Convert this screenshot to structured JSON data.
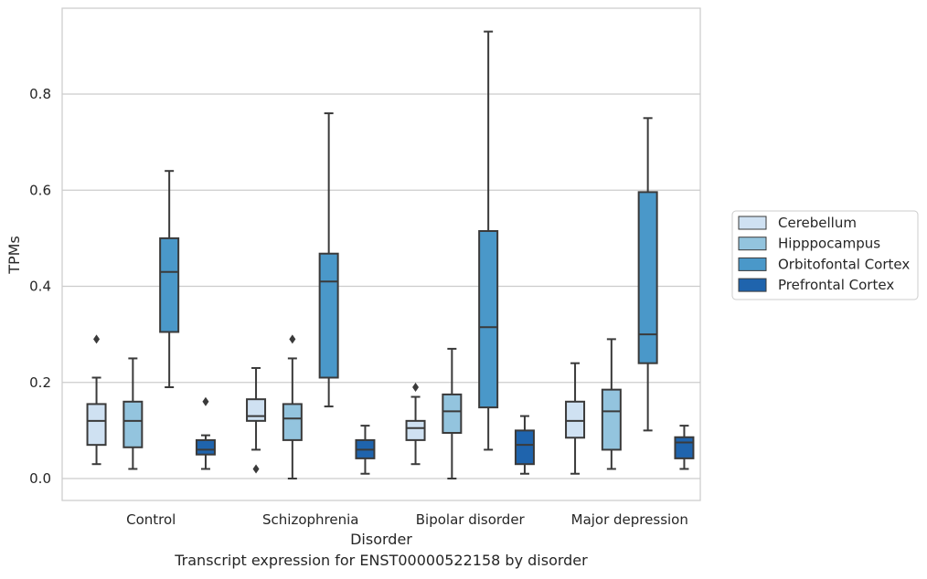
{
  "caption": "Transcript expression for ENST00000522158 by disorder",
  "chart_data": {
    "type": "box",
    "xlabel": "Disorder",
    "ylabel": "TPMs",
    "ylim": [
      -0.045,
      0.98
    ],
    "yticks": [
      "0.0",
      "0.2",
      "0.4",
      "0.6",
      "0.8"
    ],
    "grid": true,
    "legend_position": "right",
    "categories": [
      "Control",
      "Schizophrenia",
      "Bipolar disorder",
      "Major depression"
    ],
    "series": [
      {
        "name": "Cerebellum",
        "color": "#cfe1f2",
        "boxes": [
          {
            "whislo": 0.03,
            "q1": 0.07,
            "med": 0.12,
            "q3": 0.155,
            "whishi": 0.21,
            "fliers": [
              0.29
            ]
          },
          {
            "whislo": 0.06,
            "q1": 0.12,
            "med": 0.13,
            "q3": 0.165,
            "whishi": 0.23,
            "fliers": [
              0.02
            ]
          },
          {
            "whislo": 0.03,
            "q1": 0.08,
            "med": 0.105,
            "q3": 0.12,
            "whishi": 0.17,
            "fliers": [
              0.19
            ]
          },
          {
            "whislo": 0.01,
            "q1": 0.085,
            "med": 0.12,
            "q3": 0.16,
            "whishi": 0.24,
            "fliers": []
          }
        ]
      },
      {
        "name": "Hipppocampus",
        "color": "#93c4de",
        "boxes": [
          {
            "whislo": 0.02,
            "q1": 0.065,
            "med": 0.12,
            "q3": 0.16,
            "whishi": 0.25,
            "fliers": []
          },
          {
            "whislo": 0.0,
            "q1": 0.08,
            "med": 0.125,
            "q3": 0.155,
            "whishi": 0.25,
            "fliers": [
              0.29
            ]
          },
          {
            "whislo": 0.0,
            "q1": 0.095,
            "med": 0.14,
            "q3": 0.175,
            "whishi": 0.27,
            "fliers": []
          },
          {
            "whislo": 0.02,
            "q1": 0.06,
            "med": 0.14,
            "q3": 0.185,
            "whishi": 0.29,
            "fliers": []
          }
        ]
      },
      {
        "name": "Orbitofontal Cortex",
        "color": "#4a98c9",
        "boxes": [
          {
            "whislo": 0.19,
            "q1": 0.305,
            "med": 0.43,
            "q3": 0.5,
            "whishi": 0.64,
            "fliers": []
          },
          {
            "whislo": 0.15,
            "q1": 0.21,
            "med": 0.41,
            "q3": 0.468,
            "whishi": 0.76,
            "fliers": []
          },
          {
            "whislo": 0.06,
            "q1": 0.148,
            "med": 0.315,
            "q3": 0.515,
            "whishi": 0.93,
            "fliers": []
          },
          {
            "whislo": 0.1,
            "q1": 0.24,
            "med": 0.3,
            "q3": 0.596,
            "whishi": 0.75,
            "fliers": []
          }
        ]
      },
      {
        "name": "Prefrontal Cortex",
        "color": "#1f64ad",
        "boxes": [
          {
            "whislo": 0.02,
            "q1": 0.05,
            "med": 0.06,
            "q3": 0.08,
            "whishi": 0.09,
            "fliers": [
              0.16
            ]
          },
          {
            "whislo": 0.01,
            "q1": 0.042,
            "med": 0.06,
            "q3": 0.08,
            "whishi": 0.11,
            "fliers": []
          },
          {
            "whislo": 0.01,
            "q1": 0.03,
            "med": 0.07,
            "q3": 0.1,
            "whishi": 0.13,
            "fliers": []
          },
          {
            "whislo": 0.02,
            "q1": 0.042,
            "med": 0.075,
            "q3": 0.086,
            "whishi": 0.11,
            "fliers": []
          }
        ]
      }
    ]
  }
}
